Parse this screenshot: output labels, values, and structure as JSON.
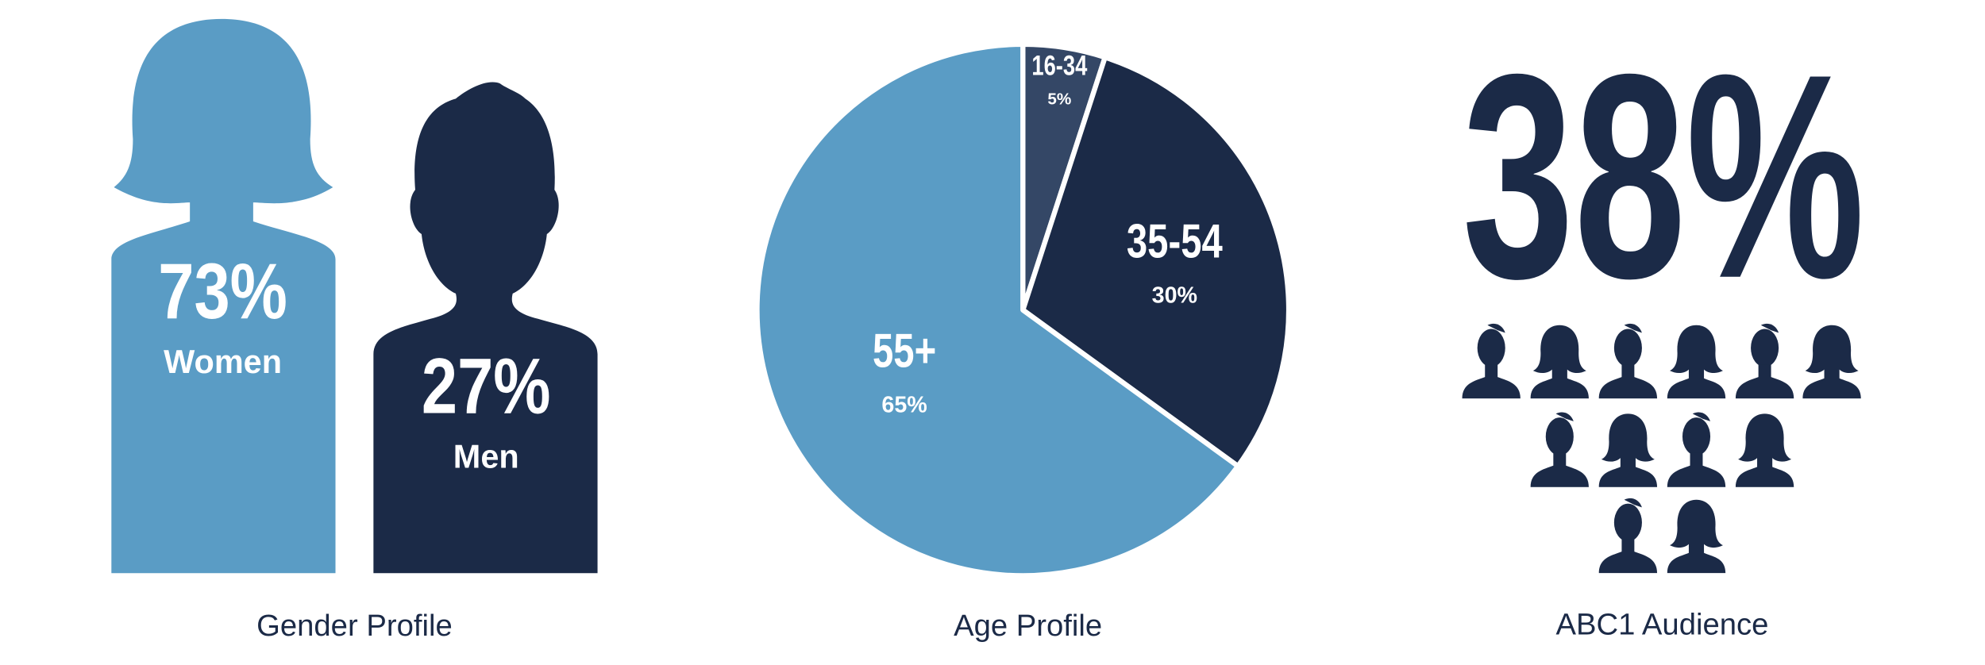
{
  "chart_data": [
    {
      "type": "pictogram",
      "title": "Gender Profile",
      "categories": [
        "Women",
        "Men"
      ],
      "values": [
        73,
        27
      ],
      "value_labels": [
        "73%",
        "27%"
      ],
      "colors": [
        "#5a9cc5",
        "#1b2a47"
      ]
    },
    {
      "type": "pie",
      "title": "Age Profile",
      "categories": [
        "16-34",
        "35-54",
        "55+"
      ],
      "values": [
        5,
        30,
        65
      ],
      "value_labels": [
        "5%",
        "30%",
        "65%"
      ],
      "colors": [
        "#344766",
        "#1b2a47",
        "#5a9cc5"
      ]
    },
    {
      "type": "stat",
      "title": "ABC1 Audience",
      "value": 38,
      "value_label": "38%",
      "color": "#1b2a47"
    }
  ]
}
